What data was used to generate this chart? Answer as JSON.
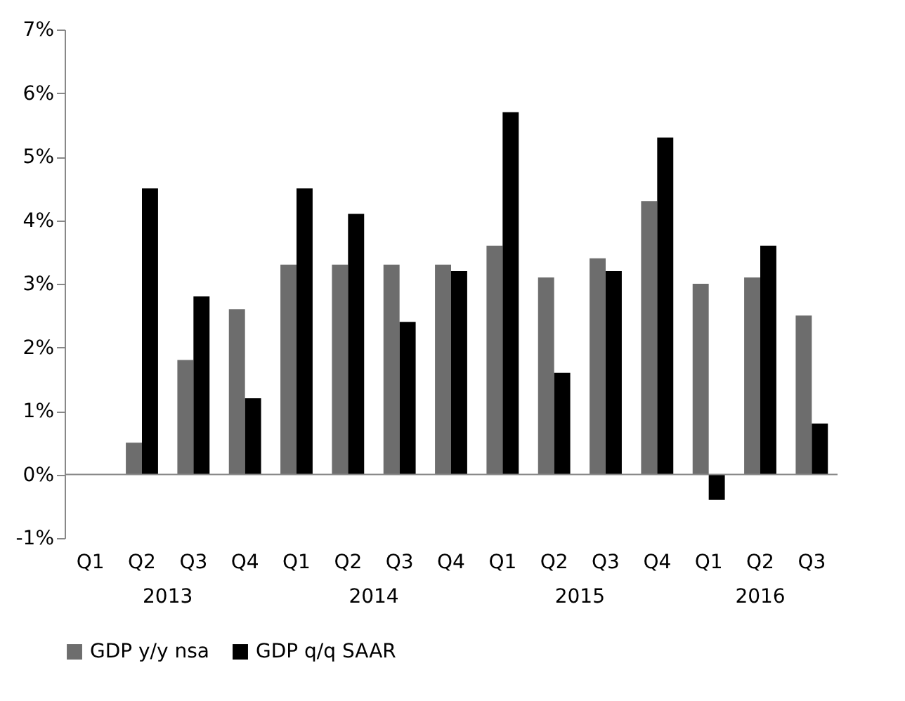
{
  "chart_data": {
    "type": "bar",
    "categories": [
      "Q1",
      "Q2",
      "Q3",
      "Q4",
      "Q1",
      "Q2",
      "Q3",
      "Q4",
      "Q1",
      "Q2",
      "Q3",
      "Q4",
      "Q1",
      "Q2",
      "Q3"
    ],
    "series": [
      {
        "name": "GDP y/y nsa",
        "color": "#6d6d6d",
        "values": [
          null,
          0.5,
          1.8,
          2.6,
          3.3,
          3.3,
          3.3,
          3.3,
          3.6,
          3.1,
          3.4,
          4.3,
          3.0,
          3.1,
          2.5
        ]
      },
      {
        "name": "GDP q/q SAAR",
        "color": "#000000",
        "values": [
          null,
          4.5,
          2.8,
          1.2,
          4.5,
          4.1,
          2.4,
          3.2,
          5.7,
          1.6,
          3.2,
          5.3,
          -0.4,
          3.6,
          0.8
        ]
      }
    ],
    "ylim": [
      -1,
      7
    ],
    "yticks": [
      {
        "value": -1,
        "label": "-1%"
      },
      {
        "value": 0,
        "label": "0%"
      },
      {
        "value": 1,
        "label": "1%"
      },
      {
        "value": 2,
        "label": "2%"
      },
      {
        "value": 3,
        "label": "3%"
      },
      {
        "value": 4,
        "label": "4%"
      },
      {
        "value": 5,
        "label": "5%"
      },
      {
        "value": 6,
        "label": "6%"
      },
      {
        "value": 7,
        "label": "7%"
      }
    ],
    "annotations": [
      "2013",
      "2014",
      "2015",
      "2016"
    ],
    "legend": "bottom"
  }
}
